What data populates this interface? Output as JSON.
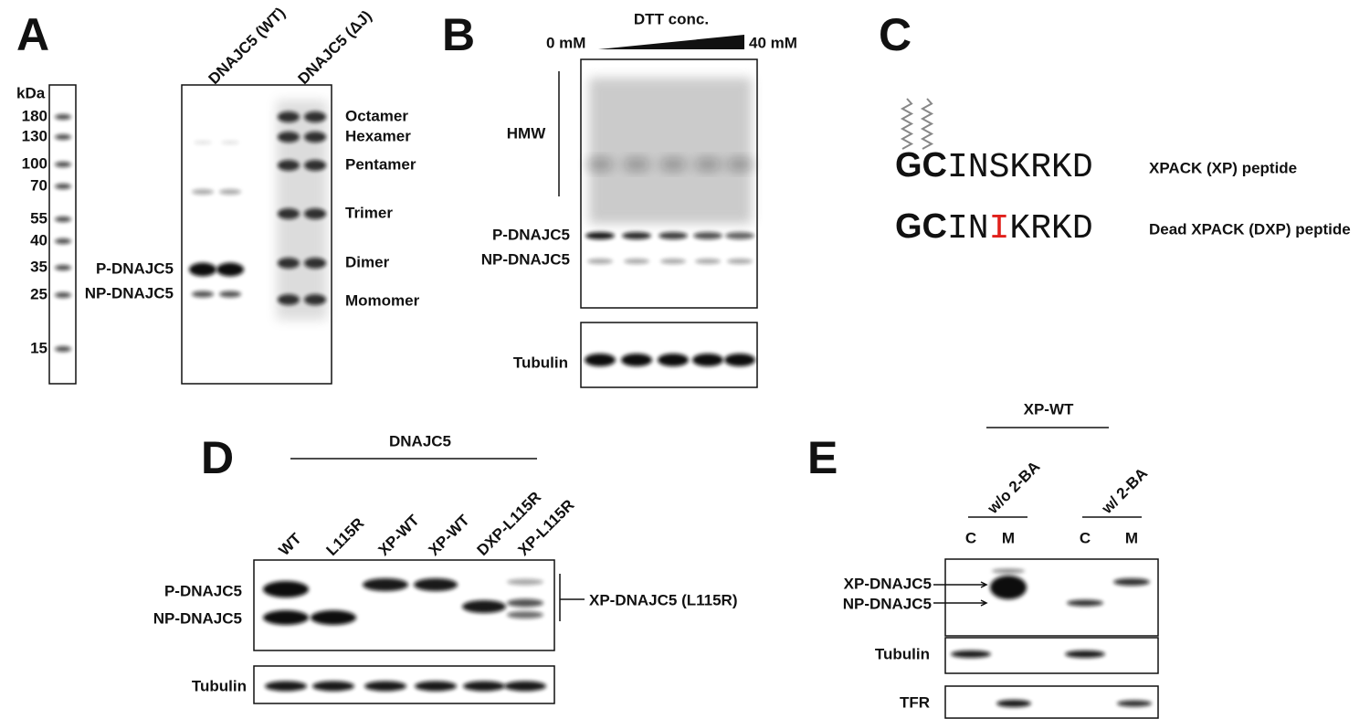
{
  "panel_a": {
    "letter": "A",
    "ladder_unit": "kDa",
    "ladder": [
      180,
      130,
      100,
      70,
      55,
      40,
      35,
      25,
      15
    ],
    "lanes": [
      "DNAJC5 (WT)",
      "DNAJC5 (ΔJ)"
    ],
    "left_labels": [
      "P-DNAJC5",
      "NP-DNAJC5"
    ],
    "right_labels": [
      "Octamer",
      "Hexamer",
      "Pentamer",
      "Trimer",
      "Dimer",
      "Momomer"
    ]
  },
  "panel_b": {
    "letter": "B",
    "gradient_title": "DTT conc.",
    "gradient_start": "0 mM",
    "gradient_end": "40 mM",
    "hmw_label": "HMW",
    "left_labels": [
      "P-DNAJC5",
      "NP-DNAJC5"
    ],
    "loading_label": "Tubulin"
  },
  "panel_c": {
    "letter": "C",
    "peptides": [
      {
        "parts": [
          "GC",
          "INSKRKD"
        ],
        "name": "XPACK (XP) peptide"
      },
      {
        "parts": [
          "GC",
          "IN",
          "I",
          "KRKD"
        ],
        "name": "Dead XPACK (DXP) peptide"
      }
    ]
  },
  "panel_d": {
    "letter": "D",
    "group": "DNAJC5",
    "lanes": [
      "WT",
      "L115R",
      "XP-WT",
      "XP-WT",
      "DXP-L115R",
      "XP-L115R"
    ],
    "left_labels": [
      "P-DNAJC5",
      "NP-DNAJC5"
    ],
    "bracket_label": "XP-DNAJC5 (L115R)",
    "loading_label": "Tubulin"
  },
  "panel_e": {
    "letter": "E",
    "group": "XP-WT",
    "treatments": [
      "w/o 2-BA",
      "w/ 2-BA"
    ],
    "fractions": [
      "C",
      "M",
      "C",
      "M"
    ],
    "left_labels": [
      "XP-DNAJC5",
      "NP-DNAJC5"
    ],
    "loading_labels": [
      "Tubulin",
      "TFR"
    ]
  }
}
